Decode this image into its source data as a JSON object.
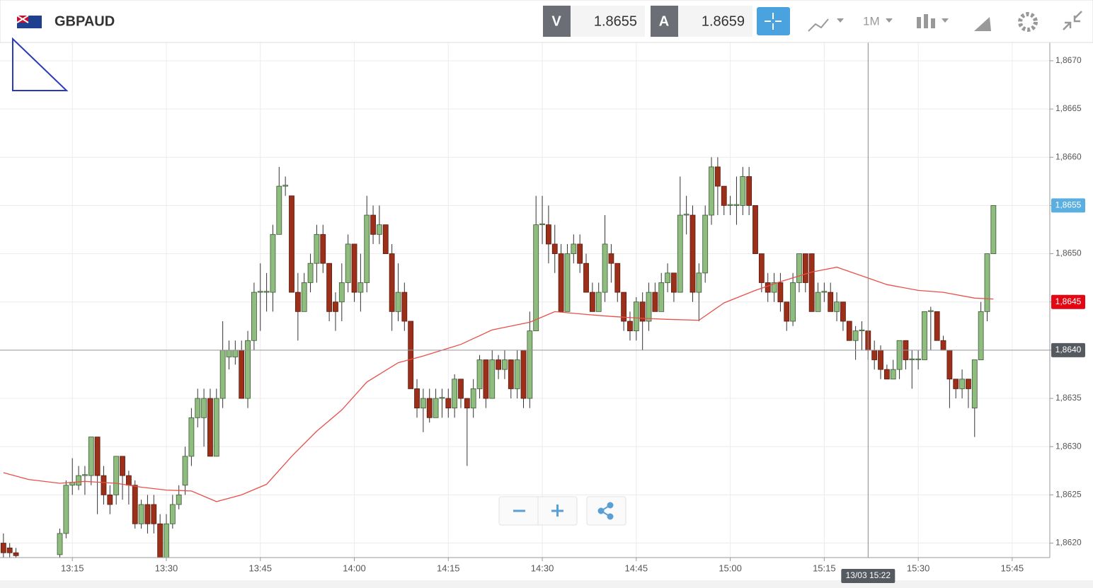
{
  "header": {
    "symbol": "GBPAUD",
    "bid_label": "V",
    "bid": "1.8655",
    "ask_label": "A",
    "ask": "1.8659",
    "timeframe": "1M"
  },
  "chart_data": {
    "type": "candlestick",
    "up_color": "#8fbc7f",
    "down_color": "#9c2f1a",
    "candles": {
      "x": [
        "13:04",
        "13:05",
        "13:06",
        "13:13",
        "13:14",
        "13:15",
        "13:16",
        "13:17",
        "13:18",
        "13:19",
        "13:20",
        "13:21",
        "13:22",
        "13:23",
        "13:24",
        "13:25",
        "13:26",
        "13:27",
        "13:28",
        "13:29",
        "13:30",
        "13:31",
        "13:32",
        "13:33",
        "13:34",
        "13:35",
        "13:36",
        "13:37",
        "13:38",
        "13:39",
        "13:40",
        "13:41",
        "13:42",
        "13:43",
        "13:44",
        "13:45",
        "13:46",
        "13:47",
        "13:48",
        "13:49",
        "13:50",
        "13:51",
        "13:52",
        "13:53",
        "13:54",
        "13:55",
        "13:56",
        "13:57",
        "13:58",
        "13:59",
        "14:00",
        "14:01",
        "14:02",
        "14:03",
        "14:04",
        "14:05",
        "14:06",
        "14:07",
        "14:08",
        "14:09",
        "14:10",
        "14:11",
        "14:12",
        "14:13",
        "14:14",
        "14:15",
        "14:16",
        "14:17",
        "14:18",
        "14:19",
        "14:20",
        "14:21",
        "14:22",
        "14:23",
        "14:24",
        "14:25",
        "14:26",
        "14:27",
        "14:28",
        "14:29",
        "14:30",
        "14:31",
        "14:32",
        "14:33",
        "14:34",
        "14:35",
        "14:36",
        "14:37",
        "14:38",
        "14:39",
        "14:40",
        "14:41",
        "14:42",
        "14:43",
        "14:44",
        "14:45",
        "14:46",
        "14:47",
        "14:48",
        "14:49",
        "14:50",
        "14:51",
        "14:52",
        "14:53",
        "14:54",
        "14:55",
        "14:56",
        "14:57",
        "14:58",
        "14:59",
        "15:00",
        "15:01",
        "15:02",
        "15:03",
        "15:04",
        "15:05",
        "15:06",
        "15:07",
        "15:08",
        "15:09",
        "15:10",
        "15:11",
        "15:12",
        "15:13",
        "15:14",
        "15:15",
        "15:16",
        "15:17",
        "15:18",
        "15:19",
        "15:20",
        "15:21",
        "15:22",
        "15:23",
        "15:24",
        "15:25",
        "15:26",
        "15:27",
        "15:28",
        "15:29",
        "15:30",
        "15:31",
        "15:32",
        "15:33",
        "15:34",
        "15:35",
        "15:36",
        "15:37",
        "15:38",
        "15:39",
        "15:40",
        "15:41",
        "15:42"
      ],
      "open": [
        1.862,
        1.86195,
        1.8619,
        1.86188,
        1.8621,
        1.8626,
        1.8626,
        1.8627,
        1.8627,
        1.8631,
        1.8627,
        1.8625,
        1.8625,
        1.8629,
        1.8627,
        1.8626,
        1.8622,
        1.8624,
        1.8624,
        1.8622,
        1.86185,
        1.8622,
        1.8624,
        1.8626,
        1.8629,
        1.8633,
        1.8633,
        1.8635,
        1.8629,
        1.8635,
        1.86393,
        1.86393,
        1.864,
        1.8635,
        1.8641,
        1.8646,
        1.8646,
        1.8646,
        1.8652,
        1.8657,
        1.8656,
        1.8646,
        1.8644,
        1.8647,
        1.8649,
        1.8652,
        1.8649,
        1.8645,
        1.8645,
        1.8647,
        1.8651,
        1.8646,
        1.8647,
        1.8654,
        1.8652,
        1.8653,
        1.865,
        1.8644,
        1.8646,
        1.8643,
        1.8636,
        1.8634,
        1.8635,
        1.8633,
        1.8635,
        1.8635,
        1.8634,
        1.8637,
        1.8635,
        1.8634,
        1.8636,
        1.8639,
        1.8635,
        1.8639,
        1.8638,
        1.8639,
        1.8636,
        1.864,
        1.8635,
        1.8642,
        1.8653,
        1.8653,
        1.8651,
        1.865,
        1.8644,
        1.865,
        1.8651,
        1.8649,
        1.8646,
        1.8644,
        1.8646,
        1.865,
        1.8649,
        1.8646,
        1.8643,
        1.8642,
        1.8645,
        1.8643,
        1.8646,
        1.8644,
        1.8647,
        1.8648,
        1.8646,
        1.8654,
        1.8654,
        1.8646,
        1.8648,
        1.8654,
        1.8659,
        1.8657,
        1.8655,
        1.8655,
        1.8655,
        1.8658,
        1.8655,
        1.865,
        1.8647,
        1.8646,
        1.8647,
        1.8645,
        1.8643,
        1.8647,
        1.865,
        1.865,
        1.8644,
        1.8646,
        1.8646,
        1.8644,
        1.8645,
        1.8643,
        1.8641,
        1.8642,
        1.8642,
        1.864,
        1.864,
        1.8638,
        1.8637,
        1.8638,
        1.8641,
        1.8639,
        1.8639,
        1.8639,
        1.8644,
        1.8644,
        1.8641,
        1.864,
        1.8637,
        1.8636,
        1.8637,
        1.8634,
        1.8639,
        1.8644,
        1.865
      ],
      "high": [
        1.8621,
        1.862,
        1.86195,
        1.86215,
        1.86265,
        1.86288,
        1.8628,
        1.8628,
        1.8631,
        1.8631,
        1.8628,
        1.8626,
        1.8629,
        1.8629,
        1.86275,
        1.86265,
        1.86245,
        1.8625,
        1.8625,
        1.8623,
        1.8623,
        1.8625,
        1.8626,
        1.863,
        1.8634,
        1.8636,
        1.8636,
        1.8636,
        1.8636,
        1.8643,
        1.8641,
        1.8641,
        1.8641,
        1.8642,
        1.8647,
        1.8649,
        1.8648,
        1.8653,
        1.8659,
        1.8658,
        1.8656,
        1.8648,
        1.8648,
        1.865,
        1.8653,
        1.8653,
        1.8649,
        1.8646,
        1.8649,
        1.8652,
        1.8651,
        1.865,
        1.8656,
        1.8655,
        1.8655,
        1.8653,
        1.8651,
        1.8649,
        1.8647,
        1.8643,
        1.8637,
        1.8636,
        1.8636,
        1.8636,
        1.8636,
        1.8636,
        1.86375,
        1.8637,
        1.8635,
        1.8637,
        1.86395,
        1.8639,
        1.864,
        1.86395,
        1.864,
        1.8639,
        1.864,
        1.864,
        1.8644,
        1.8656,
        1.8656,
        1.8655,
        1.8653,
        1.8651,
        1.8651,
        1.8652,
        1.8652,
        1.865,
        1.8647,
        1.8647,
        1.8654,
        1.8651,
        1.8649,
        1.8646,
        1.8644,
        1.86455,
        1.8646,
        1.8647,
        1.8647,
        1.8648,
        1.8649,
        1.8648,
        1.8658,
        1.8656,
        1.8655,
        1.8649,
        1.8655,
        1.866,
        1.866,
        1.8657,
        1.8656,
        1.8658,
        1.8659,
        1.8659,
        1.8655,
        1.865,
        1.8648,
        1.8648,
        1.8648,
        1.8645,
        1.8648,
        1.865,
        1.865,
        1.865,
        1.8647,
        1.8647,
        1.8647,
        1.8646,
        1.8645,
        1.8643,
        1.86425,
        1.8643,
        1.8642,
        1.8641,
        1.86405,
        1.86385,
        1.8639,
        1.8641,
        1.8641,
        1.864,
        1.864,
        1.8644,
        1.86445,
        1.8644,
        1.86415,
        1.864,
        1.8637,
        1.8638,
        1.8637,
        1.8639,
        1.8645,
        1.865,
        1.8655
      ],
      "low": [
        1.86185,
        1.86185,
        1.86185,
        1.86185,
        1.86205,
        1.8625,
        1.86255,
        1.8625,
        1.8626,
        1.8623,
        1.8624,
        1.8623,
        1.8624,
        1.86245,
        1.8624,
        1.86215,
        1.86215,
        1.8621,
        1.8621,
        1.8618,
        1.8618,
        1.86215,
        1.86235,
        1.8625,
        1.8628,
        1.8632,
        1.863,
        1.8629,
        1.8629,
        1.8634,
        1.8638,
        1.86385,
        1.8635,
        1.8634,
        1.864,
        1.8642,
        1.8644,
        1.8644,
        1.8652,
        1.8656,
        1.8646,
        1.8641,
        1.8644,
        1.8646,
        1.8647,
        1.8648,
        1.8643,
        1.8642,
        1.8643,
        1.8646,
        1.8645,
        1.8644,
        1.8646,
        1.8651,
        1.8651,
        1.865,
        1.8642,
        1.8643,
        1.8642,
        1.8636,
        1.8633,
        1.86315,
        1.86325,
        1.8633,
        1.8633,
        1.8633,
        1.8633,
        1.8634,
        1.8628,
        1.8633,
        1.8635,
        1.8634,
        1.8635,
        1.8637,
        1.8637,
        1.8635,
        1.8635,
        1.8634,
        1.8634,
        1.8642,
        1.8651,
        1.8649,
        1.8648,
        1.8644,
        1.8644,
        1.8649,
        1.8648,
        1.8646,
        1.8644,
        1.8644,
        1.8645,
        1.8647,
        1.8645,
        1.8642,
        1.8641,
        1.8641,
        1.864,
        1.8642,
        1.8644,
        1.8644,
        1.8646,
        1.8645,
        1.8646,
        1.8652,
        1.8645,
        1.8643,
        1.8647,
        1.8653,
        1.8654,
        1.8654,
        1.8654,
        1.8653,
        1.8654,
        1.8654,
        1.865,
        1.8646,
        1.8645,
        1.8645,
        1.8644,
        1.8642,
        1.86425,
        1.8646,
        1.8646,
        1.8644,
        1.8644,
        1.8645,
        1.8644,
        1.8643,
        1.8642,
        1.8641,
        1.8639,
        1.864,
        1.8639,
        1.8638,
        1.8637,
        1.8637,
        1.8637,
        1.8637,
        1.8638,
        1.8636,
        1.8638,
        1.8639,
        1.864,
        1.8641,
        1.864,
        1.8634,
        1.8635,
        1.8635,
        1.8634,
        1.8631,
        1.8639,
        1.8643,
        1.865
      ],
      "close": [
        1.8619,
        1.8619,
        1.86187,
        1.8621,
        1.8626,
        1.86263,
        1.8627,
        1.86271,
        1.8631,
        1.8627,
        1.8625,
        1.8624,
        1.8629,
        1.8627,
        1.8626,
        1.8622,
        1.8624,
        1.8622,
        1.8622,
        1.86185,
        1.8622,
        1.8624,
        1.8625,
        1.8629,
        1.8633,
        1.8635,
        1.8635,
        1.8629,
        1.8635,
        1.864,
        1.864,
        1.864,
        1.8635,
        1.8641,
        1.8646,
        1.86461,
        1.86461,
        1.8652,
        1.8657,
        1.86571,
        1.8646,
        1.8644,
        1.8647,
        1.8649,
        1.8652,
        1.8649,
        1.8644,
        1.8644,
        1.8647,
        1.8651,
        1.8646,
        1.8647,
        1.8654,
        1.8652,
        1.8653,
        1.865,
        1.8644,
        1.8646,
        1.8643,
        1.8636,
        1.8634,
        1.8635,
        1.8633,
        1.8635,
        1.86351,
        1.8634,
        1.8637,
        1.8635,
        1.8634,
        1.8636,
        1.8639,
        1.8635,
        1.8639,
        1.8638,
        1.8639,
        1.8636,
        1.8639,
        1.8635,
        1.8642,
        1.8653,
        1.86531,
        1.8651,
        1.865,
        1.8644,
        1.865,
        1.8651,
        1.8649,
        1.8646,
        1.8644,
        1.8646,
        1.8651,
        1.8649,
        1.8646,
        1.8643,
        1.8642,
        1.8645,
        1.8643,
        1.8646,
        1.8644,
        1.8647,
        1.8648,
        1.8646,
        1.8654,
        1.86541,
        1.8646,
        1.8648,
        1.8654,
        1.8659,
        1.8657,
        1.8655,
        1.86551,
        1.86551,
        1.8658,
        1.8655,
        1.865,
        1.8647,
        1.8646,
        1.8647,
        1.8645,
        1.8643,
        1.8647,
        1.865,
        1.8647,
        1.8644,
        1.8646,
        1.86461,
        1.8644,
        1.8645,
        1.8643,
        1.8641,
        1.8642,
        1.86421,
        1.864,
        1.8639,
        1.8638,
        1.8637,
        1.8638,
        1.8641,
        1.8639,
        1.86391,
        1.86391,
        1.8644,
        1.86441,
        1.8641,
        1.864,
        1.8637,
        1.8636,
        1.8637,
        1.8636,
        1.8639,
        1.8644,
        1.865,
        1.8655
      ]
    },
    "ma": {
      "color": "#e8504a",
      "x": [
        "13:04",
        "13:08",
        "13:13",
        "13:17",
        "13:22",
        "13:26",
        "13:30",
        "13:34",
        "13:38",
        "13:42",
        "13:46",
        "13:50",
        "13:54",
        "13:58",
        "14:02",
        "14:07",
        "14:11",
        "14:17",
        "14:22",
        "14:28",
        "14:32",
        "14:37",
        "14:41",
        "14:46",
        "14:50",
        "14:55",
        "14:59",
        "15:04",
        "15:08",
        "15:13",
        "15:17",
        "15:21",
        "15:25",
        "15:30",
        "15:34",
        "15:39",
        "15:42"
      ],
      "values": [
        1.86273,
        1.86266,
        1.86262,
        1.86264,
        1.86262,
        1.86258,
        1.86255,
        1.86254,
        1.86243,
        1.8625,
        1.86261,
        1.8629,
        1.86316,
        1.86338,
        1.86367,
        1.86387,
        1.86394,
        1.86406,
        1.86421,
        1.86429,
        1.8644,
        1.86437,
        1.86435,
        1.86433,
        1.86432,
        1.86431,
        1.86449,
        1.86462,
        1.86471,
        1.86481,
        1.86486,
        1.86477,
        1.86468,
        1.86462,
        1.8646,
        1.86454,
        1.86453
      ]
    },
    "xlim": [
      "13:03",
      "15:51"
    ],
    "xticks": [
      "13:15",
      "13:30",
      "13:45",
      "14:00",
      "14:15",
      "14:30",
      "14:45",
      "15:00",
      "15:15",
      "15:30",
      "15:45"
    ],
    "ylim": [
      1.86185,
      1.86719
    ],
    "yticks": [
      {
        "value": 1.862,
        "label": "1,8620"
      },
      {
        "value": 1.8625,
        "label": "1,8625"
      },
      {
        "value": 1.863,
        "label": "1,8630"
      },
      {
        "value": 1.8635,
        "label": "1,8635"
      },
      {
        "value": 1.864,
        "label": "1,8640"
      },
      {
        "value": 1.8645,
        "label": "1,8645"
      },
      {
        "value": 1.865,
        "label": "1,8650"
      },
      {
        "value": 1.8655,
        "label": "1,8655"
      },
      {
        "value": 1.866,
        "label": "1,8660"
      },
      {
        "value": 1.8665,
        "label": "1,8665"
      },
      {
        "value": 1.867,
        "label": "1,8670"
      }
    ],
    "grid": true,
    "price_markers": [
      {
        "value": 1.8655,
        "label": "1,8655",
        "color": "#5aaee0"
      },
      {
        "value": 1.8645,
        "label": "1,8645",
        "color": "#e30613"
      }
    ],
    "crosshair": {
      "value": 1.864,
      "label": "1,8640",
      "time_label": "13/03 15:22",
      "color": "#555a60"
    }
  }
}
